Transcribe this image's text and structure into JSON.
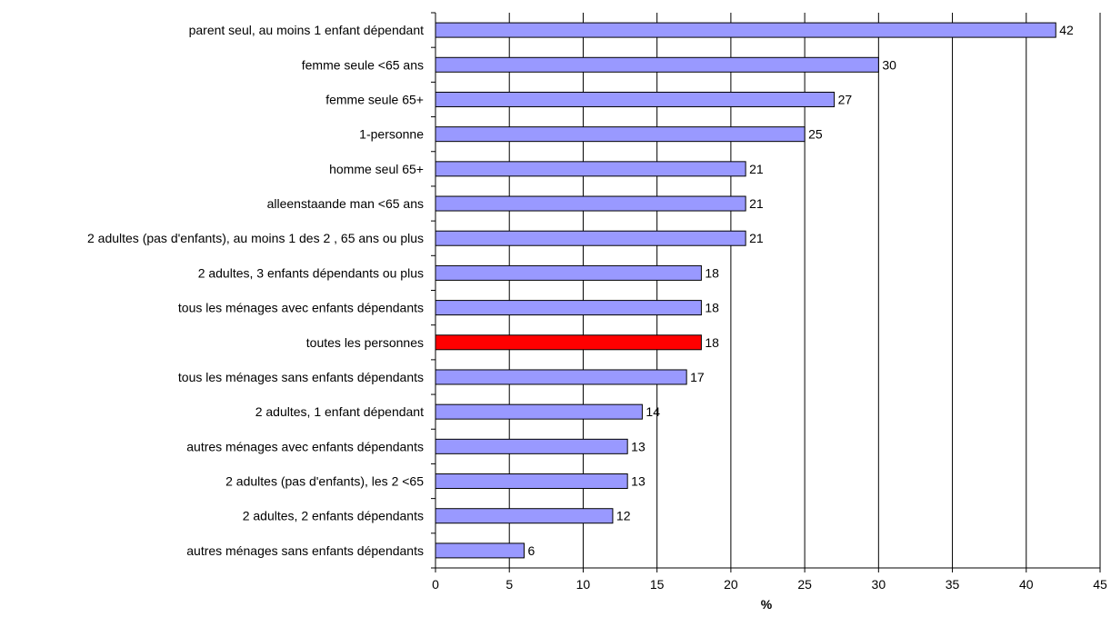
{
  "chart_data": {
    "type": "bar",
    "orientation": "horizontal",
    "categories": [
      "parent seul, au moins 1 enfant dépendant",
      "femme seule <65 ans",
      "femme seule  65+",
      "1-personne",
      "homme seul  65+",
      "alleenstaande man <65 ans",
      "2 adultes (pas d'enfants), au moins 1 des 2 , 65 ans ou plus",
      "2 adultes, 3 enfants dépendants ou plus",
      "tous les ménages avec enfants dépendants",
      "toutes les personnes",
      "tous les ménages sans enfants dépendants",
      "2 adultes, 1 enfant dépendant",
      "autres ménages avec enfants dépendants",
      "2 adultes (pas d'enfants), les 2 <65",
      "2 adultes, 2 enfants dépendants",
      "autres ménages sans enfants dépendants"
    ],
    "values": [
      42,
      30,
      27,
      25,
      21,
      21,
      21,
      18,
      18,
      18,
      17,
      14,
      13,
      13,
      12,
      6
    ],
    "highlight_index": 9,
    "xlabel": "%",
    "xlim": [
      0,
      45
    ],
    "xticks": [
      0,
      5,
      10,
      15,
      20,
      25,
      30,
      35,
      40,
      45
    ],
    "grid": "vertical",
    "colors": {
      "bar": "#9999ff",
      "highlight": "#ff0000",
      "outline": "#000000",
      "grid": "#000000"
    }
  }
}
